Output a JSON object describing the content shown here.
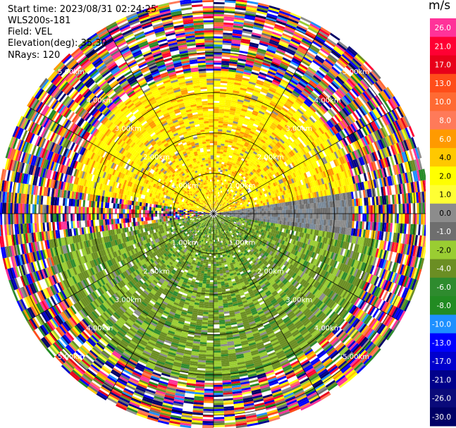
{
  "header": {
    "start_time": "Start time: 2023/08/31 02:24:25",
    "site": "WLS200s-181",
    "field": "Field: VEL",
    "elevation": "Elevation(deg): 35.30",
    "nrays": "NRays: 120"
  },
  "chart_data": {
    "type": "heatmap",
    "subtype": "polar-ppi",
    "field": "VEL",
    "nrays": 120,
    "range_rings_km": [
      1.0,
      2.0,
      3.0,
      4.0,
      5.0
    ],
    "ring_labels": [
      "1.00km",
      "2.00km",
      "3.00km",
      "4.00km",
      "5.00km"
    ],
    "spokes_deg": [
      0,
      30,
      60,
      90,
      120,
      150,
      180,
      210,
      240,
      270,
      300,
      330
    ],
    "max_range_km": 5.3,
    "colorbar": {
      "unit": "m/s",
      "ticks": [
        "26.0",
        "21.0",
        "17.0",
        "13.0",
        "10.0",
        "8.0",
        "6.0",
        "4.0",
        "2.0",
        "1.0",
        "0.0",
        "-1.0",
        "-2.0",
        "-4.0",
        "-6.0",
        "-8.0",
        "-10.0",
        "-13.0",
        "-17.0",
        "-21.0",
        "-26.0",
        "-30.0"
      ],
      "colors": [
        "#ff3399",
        "#ff0033",
        "#e8001a",
        "#ff4d1a",
        "#ff6a33",
        "#ff7a59",
        "#ff9a00",
        "#ffc800",
        "#ffff00",
        "#ffff33",
        "#8c8c8c",
        "#6e6e6e",
        "#9acd32",
        "#6b8e23",
        "#2e8b2e",
        "#228b22",
        "#1e90ff",
        "#0000ff",
        "#0000cd",
        "#00008b",
        "#0a0a7a",
        "#000066"
      ]
    },
    "regions": [
      {
        "description": "yellow/orange positive (+1..+6 m/s) northern sector",
        "from_deg": 280,
        "to_deg": 80,
        "min_km": 0.0,
        "max_km": 3.5
      },
      {
        "description": "grey near-zero band east-west",
        "from_deg": 80,
        "to_deg": 100,
        "min_km": 0.2,
        "max_km": 3.4
      },
      {
        "description": "olive-green negative (-2..-6 m/s) southern sector",
        "from_deg": 100,
        "to_deg": 260,
        "min_km": 0.0,
        "max_km": 4.1
      },
      {
        "description": "noise / random colors beyond valid range",
        "from_deg": 0,
        "to_deg": 360,
        "min_km": 3.6,
        "max_km": 5.3
      }
    ]
  }
}
